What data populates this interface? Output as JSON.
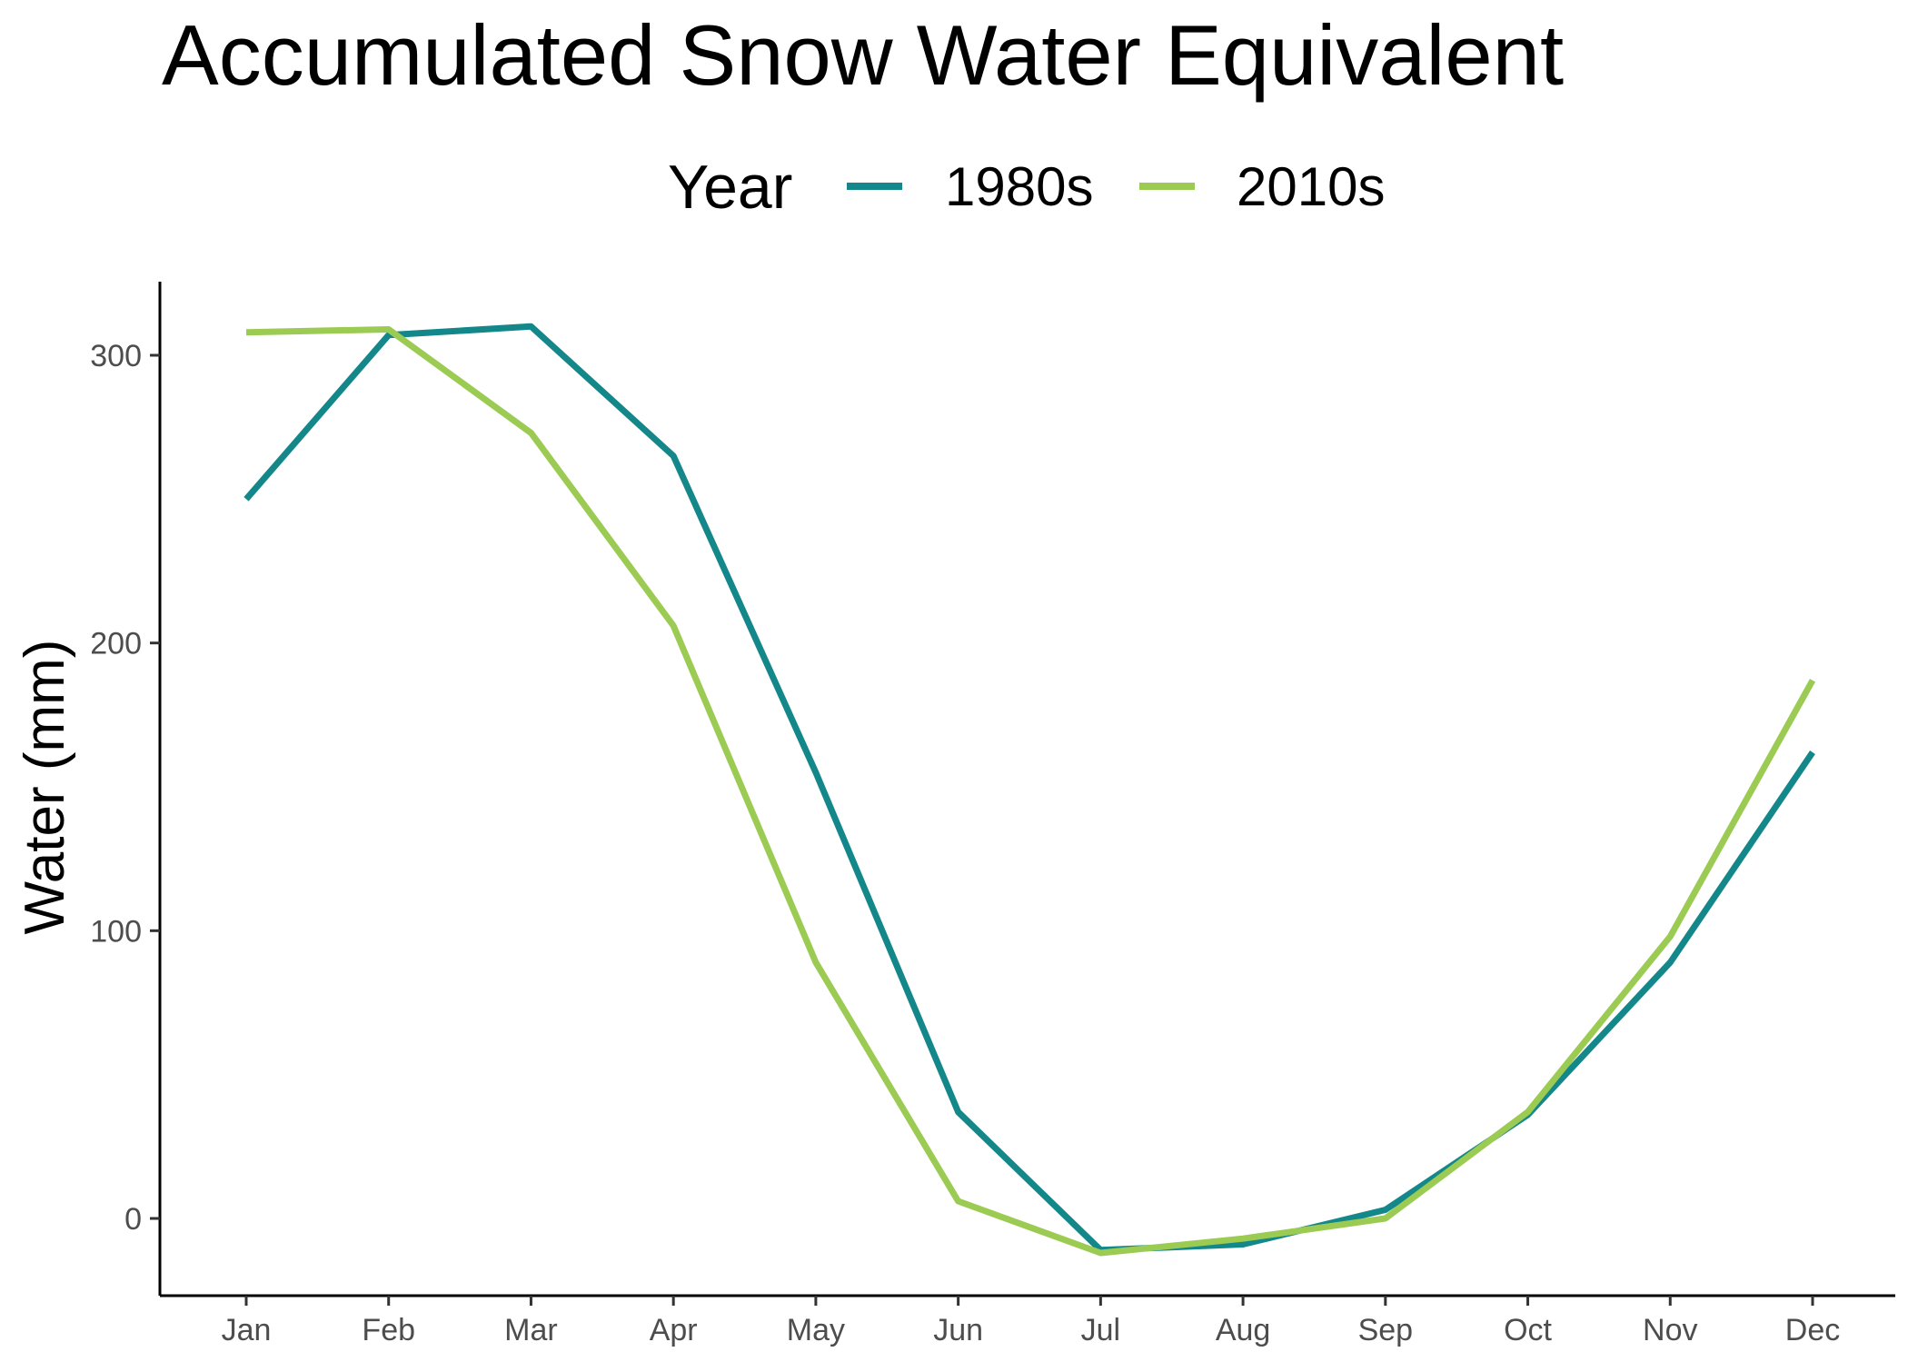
{
  "chart_data": {
    "type": "line",
    "title": "Accumulated Snow Water Equivalent",
    "xlabel": "",
    "ylabel": "Water (mm)",
    "legend": {
      "title": "Year",
      "placement": "top"
    },
    "categories": [
      "Jan",
      "Feb",
      "Mar",
      "Apr",
      "May",
      "Jun",
      "Jul",
      "Aug",
      "Sep",
      "Oct",
      "Nov",
      "Dec"
    ],
    "yticks": [
      0,
      100,
      200,
      300
    ],
    "ylim": [
      -27,
      325
    ],
    "grid": false,
    "series": [
      {
        "name": "1980s",
        "color": "#14878a",
        "values": [
          250,
          307,
          310,
          265,
          155,
          37,
          -11,
          -9,
          3,
          36,
          89,
          162
        ]
      },
      {
        "name": "2010s",
        "color": "#9bcb52",
        "values": [
          308,
          309,
          273,
          206,
          89,
          6,
          -12,
          -7,
          0,
          37,
          98,
          187
        ]
      }
    ]
  }
}
